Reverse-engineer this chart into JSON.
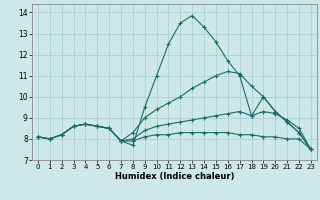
{
  "xlabel": "Humidex (Indice chaleur)",
  "xlim": [
    -0.5,
    23.5
  ],
  "ylim": [
    7,
    14.4
  ],
  "yticks": [
    7,
    8,
    9,
    10,
    11,
    12,
    13,
    14
  ],
  "xticks": [
    0,
    1,
    2,
    3,
    4,
    5,
    6,
    7,
    8,
    9,
    10,
    11,
    12,
    13,
    14,
    15,
    16,
    17,
    18,
    19,
    20,
    21,
    22,
    23
  ],
  "background_color": "#cde8e8",
  "grid_color": "#aacaca",
  "line_color": "#1a6b6b",
  "lines": [
    [
      8.1,
      8.0,
      8.2,
      8.6,
      8.7,
      8.6,
      8.5,
      7.9,
      7.7,
      9.5,
      11.0,
      12.5,
      13.5,
      13.85,
      13.3,
      12.6,
      11.7,
      11.0,
      9.1,
      10.0,
      9.3,
      8.8,
      8.3,
      7.5
    ],
    [
      8.1,
      8.0,
      8.2,
      8.6,
      8.7,
      8.6,
      8.5,
      7.9,
      8.3,
      9.0,
      9.4,
      9.7,
      10.0,
      10.4,
      10.7,
      11.0,
      11.2,
      11.1,
      10.5,
      10.0,
      9.3,
      8.8,
      8.3,
      7.5
    ],
    [
      8.1,
      8.0,
      8.2,
      8.6,
      8.7,
      8.6,
      8.5,
      7.9,
      8.0,
      8.4,
      8.6,
      8.7,
      8.8,
      8.9,
      9.0,
      9.1,
      9.2,
      9.3,
      9.1,
      9.3,
      9.2,
      8.9,
      8.5,
      7.5
    ],
    [
      8.1,
      8.0,
      8.2,
      8.6,
      8.7,
      8.6,
      8.5,
      7.9,
      7.9,
      8.1,
      8.2,
      8.2,
      8.3,
      8.3,
      8.3,
      8.3,
      8.3,
      8.2,
      8.2,
      8.1,
      8.1,
      8.0,
      8.0,
      7.5
    ]
  ]
}
